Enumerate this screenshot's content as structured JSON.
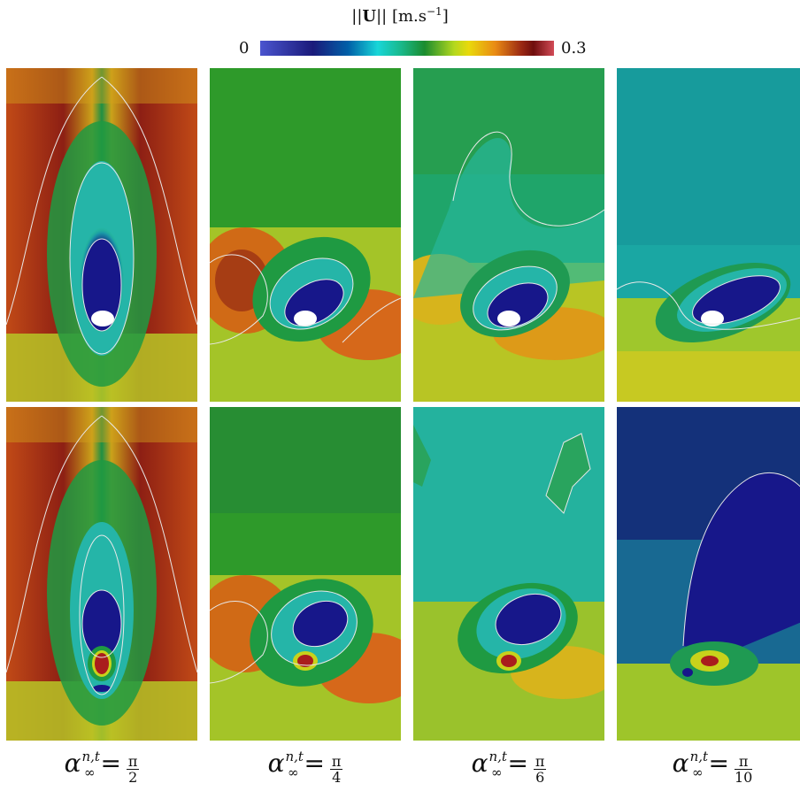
{
  "colorbar": {
    "title_prefix": "||",
    "title_symbol": "U",
    "title_suffix": "|| [m.s",
    "title_exponent": "−1",
    "title_close": "]",
    "min_label": "0",
    "max_label": "0.3"
  },
  "chart_data": {
    "type": "heatmap",
    "quantity": "||U||",
    "unit": "m.s⁻¹",
    "value_range": [
      0,
      0.3
    ],
    "colormap": [
      "#4b55cf",
      "#1a1a7a",
      "#0060a8",
      "#18d6d8",
      "#19b88a",
      "#1b8c2e",
      "#b3d81e",
      "#e9d90b",
      "#e98b14",
      "#9a2813",
      "#6f0d0d",
      "#d24b57"
    ],
    "rows": 2,
    "columns": [
      {
        "symbol": "α",
        "superscript": "n,t",
        "subscript": "∞",
        "equals": "=",
        "numerator": "π",
        "denominator": "2"
      },
      {
        "symbol": "α",
        "superscript": "n,t",
        "subscript": "∞",
        "equals": "=",
        "numerator": "π",
        "denominator": "4"
      },
      {
        "symbol": "α",
        "superscript": "n,t",
        "subscript": "∞",
        "equals": "=",
        "numerator": "π",
        "denominator": "6"
      },
      {
        "symbol": "α",
        "superscript": "n,t",
        "subscript": "∞",
        "equals": "=",
        "numerator": "π",
        "denominator": "10"
      }
    ]
  }
}
